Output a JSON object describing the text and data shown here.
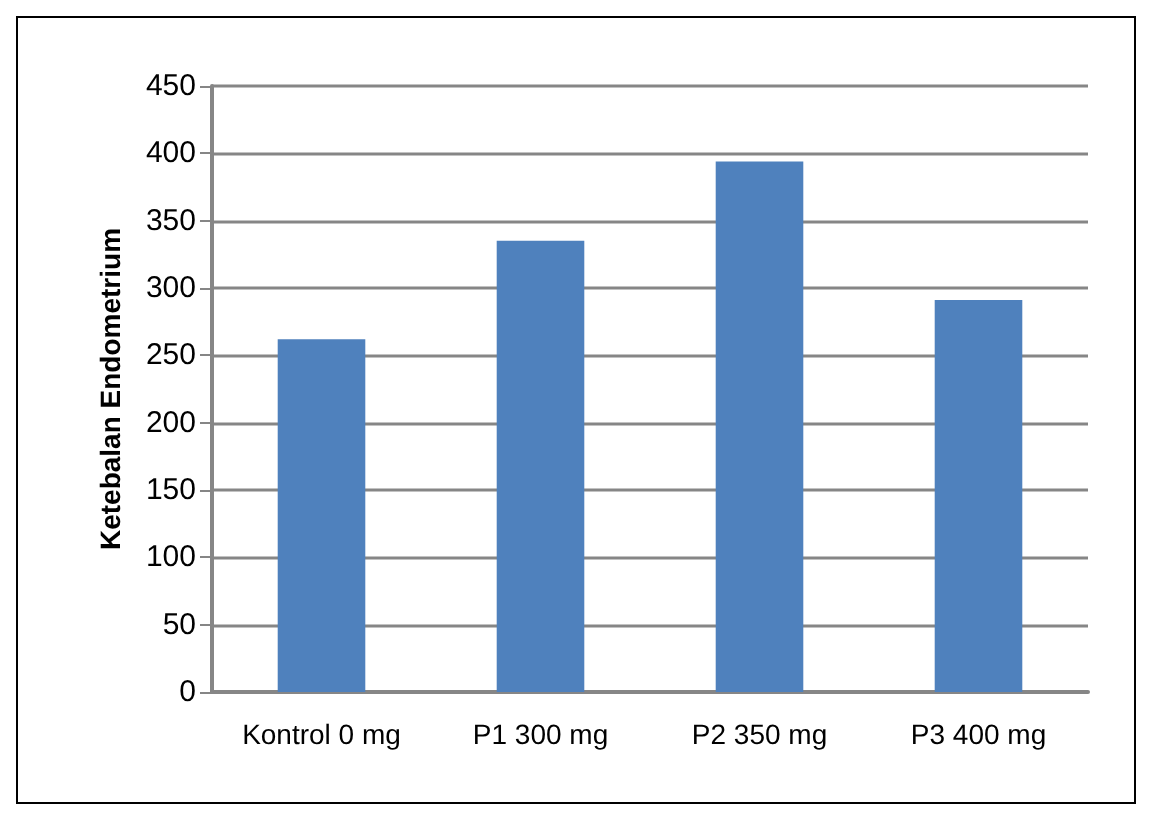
{
  "chart_data": {
    "type": "bar",
    "ylabel": "Ketebalan Endometrium",
    "categories": [
      "Kontrol 0 mg",
      "P1 300 mg",
      "P2 350 mg",
      "P3 400 mg"
    ],
    "values": [
      262,
      335,
      394,
      291
    ],
    "color": "#4f81bd",
    "ylim": [
      0,
      450
    ],
    "yticks": [
      0,
      50,
      100,
      150,
      200,
      250,
      300,
      350,
      400,
      450
    ],
    "grid": "y"
  }
}
